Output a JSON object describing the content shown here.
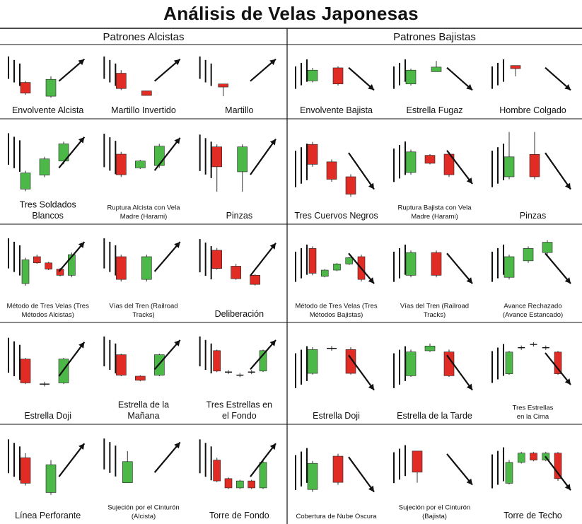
{
  "title": "Análisis de Velas Japonesas",
  "colors": {
    "bull": "#4CB848",
    "bear": "#E02C24",
    "wick": "#555555",
    "line": "#111111"
  },
  "columns": [
    {
      "heading": "Patrones Alcistas",
      "patterns": [
        {
          "label": [
            "Envolvente Alcista"
          ],
          "size": "l",
          "trend": "down",
          "arrow": "up",
          "candles": [
            {
              "o": 48,
              "c": 34,
              "h": 50,
              "l": 32
            },
            {
              "o": 30,
              "c": 52,
              "h": 56,
              "l": 28
            }
          ]
        },
        {
          "label": [
            "Martillo Invertido"
          ],
          "size": "l",
          "trend": "down",
          "arrow": "up",
          "candles": [
            {
              "o": 60,
              "c": 40,
              "h": 64,
              "l": 38
            },
            {
              "o": 37,
              "c": 31,
              "h": 37,
              "l": 31
            }
          ]
        },
        {
          "label": [
            "Martillo"
          ],
          "size": "l",
          "trend": "down",
          "arrow": "up",
          "candles": [
            {
              "o": 46,
              "c": 42,
              "h": 46,
              "l": 30
            }
          ]
        },
        {
          "label": [
            "Tres Soldados",
            "Blancos"
          ],
          "size": "l",
          "trend": "down",
          "arrow": "up",
          "candles": [
            {
              "o": 30,
              "c": 45,
              "h": 47,
              "l": 28
            },
            {
              "o": 43,
              "c": 58,
              "h": 60,
              "l": 41
            },
            {
              "o": 56,
              "c": 72,
              "h": 74,
              "l": 53
            }
          ]
        },
        {
          "label": [
            "Ruptura Alcista con Vela",
            "Madre (Harami)"
          ],
          "size": "s",
          "trend": "down",
          "arrow": "up",
          "candles": [
            {
              "o": 64,
              "c": 46,
              "h": 66,
              "l": 44
            },
            {
              "o": 52,
              "c": 58,
              "h": 59,
              "l": 51
            },
            {
              "o": 54,
              "c": 71,
              "h": 73,
              "l": 52
            }
          ]
        },
        {
          "label": [
            "Pinzas"
          ],
          "size": "l",
          "trend": "down",
          "arrow": "up",
          "candles": [
            {
              "o": 72,
              "c": 56,
              "h": 74,
              "l": 36
            },
            {
              "o": 52,
              "c": 72,
              "h": 74,
              "l": 36
            }
          ]
        },
        {
          "label": [
            "Método de Tres Velas (Tres",
            "Métodos Alcistas)"
          ],
          "size": "s",
          "trend": "down",
          "arrow": "up",
          "candles": [
            {
              "o": 38,
              "c": 61,
              "h": 63,
              "l": 36
            },
            {
              "o": 64,
              "c": 58,
              "h": 66,
              "l": 57
            },
            {
              "o": 58,
              "c": 52,
              "h": 59,
              "l": 51
            },
            {
              "o": 52,
              "c": 46,
              "h": 53,
              "l": 45
            },
            {
              "o": 46,
              "c": 66,
              "h": 68,
              "l": 44
            }
          ]
        },
        {
          "label": [
            "Vías del Tren (Railroad",
            "Tracks)"
          ],
          "size": "s",
          "trend": "down",
          "arrow": "up",
          "candles": [
            {
              "o": 64,
              "c": 42,
              "h": 66,
              "l": 40
            },
            {
              "o": 42,
              "c": 64,
              "h": 66,
              "l": 40
            }
          ]
        },
        {
          "label": [
            "Deliberación"
          ],
          "size": "l",
          "trend": "down",
          "arrow": "up",
          "candles": [
            {
              "o": 72,
              "c": 56,
              "h": 74,
              "l": 55
            },
            {
              "o": 58,
              "c": 47,
              "h": 60,
              "l": 46
            },
            {
              "o": 50,
              "c": 42,
              "h": 51,
              "l": 41
            }
          ]
        },
        {
          "label": [
            "Estrella Doji"
          ],
          "size": "l",
          "trend": "down",
          "arrow": "up",
          "candles": [
            {
              "o": 64,
              "c": 44,
              "h": 65,
              "l": 43
            },
            {
              "o": 43,
              "c": 43,
              "h": 45,
              "l": 41
            },
            {
              "o": 44,
              "c": 64,
              "h": 65,
              "l": 43
            }
          ]
        },
        {
          "label": [
            "Estrella de la",
            "Mañana"
          ],
          "size": "l",
          "trend": "down",
          "arrow": "up",
          "candles": [
            {
              "o": 64,
              "c": 44,
              "h": 65,
              "l": 43
            },
            {
              "o": 43,
              "c": 39,
              "h": 44,
              "l": 38
            },
            {
              "o": 44,
              "c": 64,
              "h": 65,
              "l": 43
            }
          ]
        },
        {
          "label": [
            "Tres Estrellas en",
            "el Fondo"
          ],
          "size": "l",
          "trend": "down",
          "arrow": "up",
          "candles": [
            {
              "o": 68,
              "c": 48,
              "h": 69,
              "l": 47
            },
            {
              "o": 47,
              "c": 47,
              "h": 49,
              "l": 45
            },
            {
              "o": 44,
              "c": 44,
              "h": 46,
              "l": 42
            },
            {
              "o": 47,
              "c": 47,
              "h": 49,
              "l": 45
            },
            {
              "o": 48,
              "c": 68,
              "h": 69,
              "l": 47
            }
          ]
        },
        {
          "label": [
            "Línea Perforante"
          ],
          "size": "l",
          "trend": "down",
          "arrow": "up",
          "candles": [
            {
              "o": 66,
              "c": 44,
              "h": 70,
              "l": 42
            },
            {
              "o": 36,
              "c": 60,
              "h": 64,
              "l": 34
            }
          ]
        },
        {
          "label": [
            "Sujeción por el Cinturón",
            "(Alcista)"
          ],
          "size": "s",
          "trend": "down",
          "arrow": "up",
          "candles": [
            {
              "o": 40,
              "c": 60,
              "h": 70,
              "l": 40
            }
          ]
        },
        {
          "label": [
            "Torre de Fondo"
          ],
          "size": "l",
          "trend": "down",
          "arrow": "up",
          "candles": [
            {
              "o": 64,
              "c": 46,
              "h": 66,
              "l": 45
            },
            {
              "o": 48,
              "c": 40,
              "h": 49,
              "l": 39
            },
            {
              "o": 40,
              "c": 46,
              "h": 47,
              "l": 39
            },
            {
              "o": 46,
              "c": 40,
              "h": 47,
              "l": 39
            },
            {
              "o": 40,
              "c": 62,
              "h": 64,
              "l": 39
            }
          ]
        }
      ]
    },
    {
      "heading": "Patrones Bajistas",
      "patterns": [
        {
          "label": [
            "Envolvente Bajista"
          ],
          "size": "l",
          "trend": "up",
          "arrow": "down",
          "candles": [
            {
              "o": 50,
              "c": 64,
              "h": 67,
              "l": 48
            },
            {
              "o": 67,
              "c": 46,
              "h": 69,
              "l": 44
            }
          ]
        },
        {
          "label": [
            "Estrella Fugaz"
          ],
          "size": "l",
          "trend": "up",
          "arrow": "down",
          "candles": [
            {
              "o": 46,
              "c": 64,
              "h": 66,
              "l": 44
            },
            {
              "o": 62,
              "c": 68,
              "h": 76,
              "l": 62
            }
          ]
        },
        {
          "label": [
            "Hombre Colgado"
          ],
          "size": "l",
          "trend": "up",
          "arrow": "down",
          "candles": [
            {
              "o": 70,
              "c": 66,
              "h": 70,
              "l": 56
            }
          ]
        },
        {
          "label": [
            "Tres Cuervos Negros"
          ],
          "size": "l",
          "trend": "up",
          "arrow": "down",
          "candles": [
            {
              "o": 74,
              "c": 58,
              "h": 76,
              "l": 56
            },
            {
              "o": 60,
              "c": 46,
              "h": 62,
              "l": 44
            },
            {
              "o": 48,
              "c": 34,
              "h": 50,
              "l": 32
            }
          ]
        },
        {
          "label": [
            "Ruptura Bajista con Vela",
            "Madre (Harami)"
          ],
          "size": "s",
          "trend": "up",
          "arrow": "down",
          "candles": [
            {
              "o": 48,
              "c": 66,
              "h": 68,
              "l": 46
            },
            {
              "o": 63,
              "c": 56,
              "h": 64,
              "l": 55
            },
            {
              "o": 64,
              "c": 46,
              "h": 66,
              "l": 44
            }
          ]
        },
        {
          "label": [
            "Pinzas"
          ],
          "size": "l",
          "trend": "up",
          "arrow": "down",
          "candles": [
            {
              "o": 48,
              "c": 64,
              "h": 84,
              "l": 46
            },
            {
              "o": 66,
              "c": 48,
              "h": 84,
              "l": 46
            }
          ]
        },
        {
          "label": [
            "Método de Tres Velas (Tres",
            "Métodos Bajistas)"
          ],
          "size": "s",
          "trend": "up",
          "arrow": "down",
          "candles": [
            {
              "o": 72,
              "c": 48,
              "h": 74,
              "l": 46
            },
            {
              "o": 45,
              "c": 51,
              "h": 52,
              "l": 44
            },
            {
              "o": 51,
              "c": 57,
              "h": 58,
              "l": 50
            },
            {
              "o": 57,
              "c": 63,
              "h": 64,
              "l": 56
            },
            {
              "o": 64,
              "c": 42,
              "h": 66,
              "l": 40
            }
          ]
        },
        {
          "label": [
            "Vías del Tren (Railroad",
            "Tracks)"
          ],
          "size": "s",
          "trend": "up",
          "arrow": "down",
          "candles": [
            {
              "o": 46,
              "c": 68,
              "h": 70,
              "l": 44
            },
            {
              "o": 68,
              "c": 46,
              "h": 70,
              "l": 44
            }
          ]
        },
        {
          "label": [
            "Avance Rechazado",
            "(Avance Estancado)"
          ],
          "size": "s",
          "trend": "up",
          "arrow": "down",
          "candles": [
            {
              "o": 44,
              "c": 64,
              "h": 66,
              "l": 42
            },
            {
              "o": 60,
              "c": 72,
              "h": 74,
              "l": 58
            },
            {
              "o": 68,
              "c": 78,
              "h": 80,
              "l": 66
            }
          ]
        },
        {
          "label": [
            "Estrella Doji"
          ],
          "size": "l",
          "trend": "up",
          "arrow": "down",
          "candles": [
            {
              "o": 52,
              "c": 72,
              "h": 74,
              "l": 51
            },
            {
              "o": 73,
              "c": 73,
              "h": 75,
              "l": 71
            },
            {
              "o": 72,
              "c": 52,
              "h": 74,
              "l": 51
            }
          ]
        },
        {
          "label": [
            "Estrella de la Tarde"
          ],
          "size": "l",
          "trend": "up",
          "arrow": "down",
          "candles": [
            {
              "o": 50,
              "c": 70,
              "h": 72,
              "l": 49
            },
            {
              "o": 71,
              "c": 75,
              "h": 77,
              "l": 70
            },
            {
              "o": 70,
              "c": 50,
              "h": 72,
              "l": 49
            }
          ]
        },
        {
          "label": [
            "Tres Estrellas",
            "en la Cima"
          ],
          "size": "s",
          "trend": "up",
          "arrow": "down",
          "candles": [
            {
              "o": 48,
              "c": 68,
              "h": 69,
              "l": 47
            },
            {
              "o": 72,
              "c": 72,
              "h": 74,
              "l": 70
            },
            {
              "o": 75,
              "c": 75,
              "h": 77,
              "l": 73
            },
            {
              "o": 72,
              "c": 72,
              "h": 74,
              "l": 70
            },
            {
              "o": 68,
              "c": 48,
              "h": 69,
              "l": 47
            }
          ]
        },
        {
          "label": [
            "Cobertura de Nube Oscura"
          ],
          "size": "s",
          "trend": "up",
          "arrow": "down",
          "candles": [
            {
              "o": 40,
              "c": 62,
              "h": 64,
              "l": 38
            },
            {
              "o": 68,
              "c": 46,
              "h": 70,
              "l": 44
            }
          ]
        },
        {
          "label": [
            "Sujeción por el Cinturón",
            "(Bajista)"
          ],
          "size": "s",
          "trend": "up",
          "arrow": "down",
          "candles": [
            {
              "o": 70,
              "c": 50,
              "h": 70,
              "l": 40
            }
          ]
        },
        {
          "label": [
            "Torre de Techo"
          ],
          "size": "l",
          "trend": "up",
          "arrow": "down",
          "candles": [
            {
              "o": 44,
              "c": 62,
              "h": 64,
              "l": 43
            },
            {
              "o": 62,
              "c": 70,
              "h": 71,
              "l": 61
            },
            {
              "o": 70,
              "c": 64,
              "h": 71,
              "l": 63
            },
            {
              "o": 64,
              "c": 70,
              "h": 71,
              "l": 63
            },
            {
              "o": 70,
              "c": 48,
              "h": 71,
              "l": 46
            }
          ]
        }
      ]
    }
  ]
}
